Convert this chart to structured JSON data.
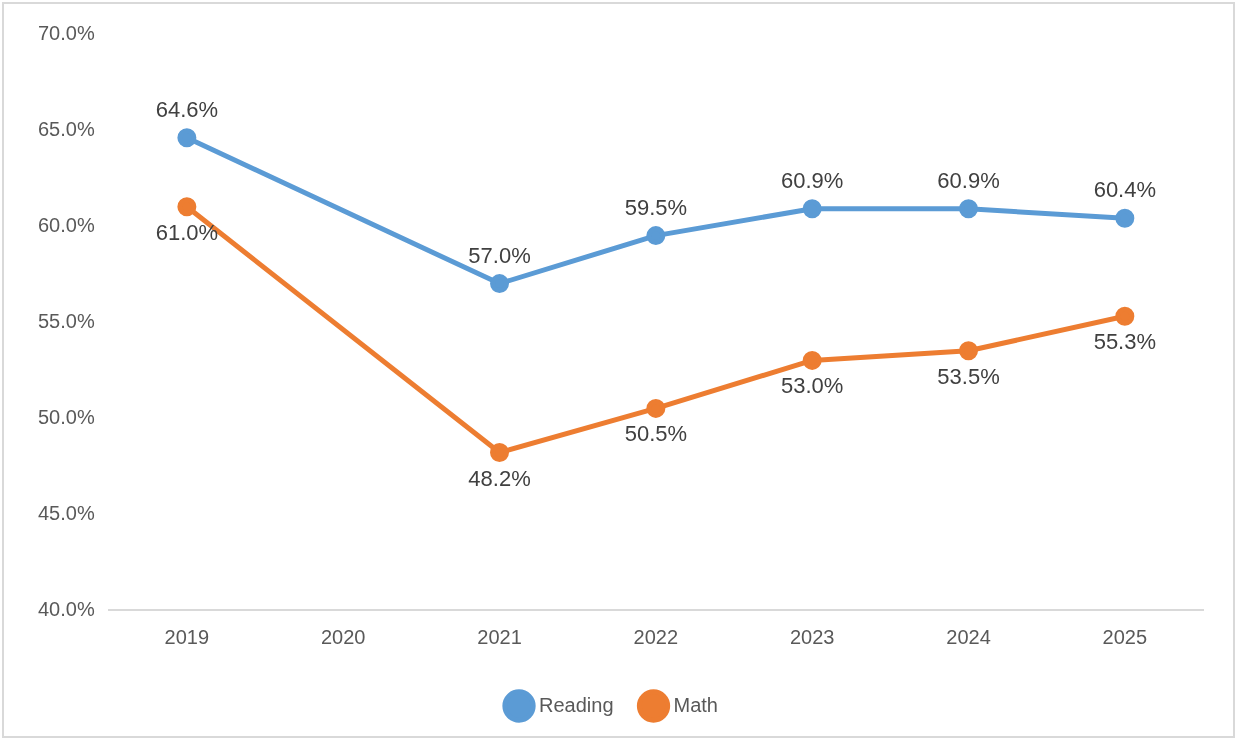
{
  "chart_data": {
    "type": "line",
    "categories": [
      "2019",
      "2020",
      "2021",
      "2022",
      "2023",
      "2024",
      "2025"
    ],
    "series": [
      {
        "name": "Reading",
        "color": "#5b9bd5",
        "values": [
          64.6,
          null,
          57.0,
          59.5,
          60.9,
          60.9,
          60.4
        ],
        "value_labels": [
          "64.6%",
          null,
          "57.0%",
          "59.5%",
          "60.9%",
          "60.9%",
          "60.4%"
        ]
      },
      {
        "name": "Math",
        "color": "#ed7d31",
        "values": [
          61.0,
          null,
          48.2,
          50.5,
          53.0,
          53.5,
          55.3
        ],
        "value_labels": [
          "61.0%",
          null,
          "48.2%",
          "50.5%",
          "53.0%",
          "53.5%",
          "55.3%"
        ]
      }
    ],
    "ylim": [
      40,
      70
    ],
    "yticks": [
      {
        "value": 40,
        "label": "40.0%"
      },
      {
        "value": 45,
        "label": "45.0%"
      },
      {
        "value": 50,
        "label": "50.0%"
      },
      {
        "value": 55,
        "label": "55.0%"
      },
      {
        "value": 60,
        "label": "60.0%"
      },
      {
        "value": 65,
        "label": "65.0%"
      },
      {
        "value": 70,
        "label": "70.0%"
      }
    ],
    "legend": "bottom",
    "marker": "circle",
    "line_style": "solid"
  }
}
